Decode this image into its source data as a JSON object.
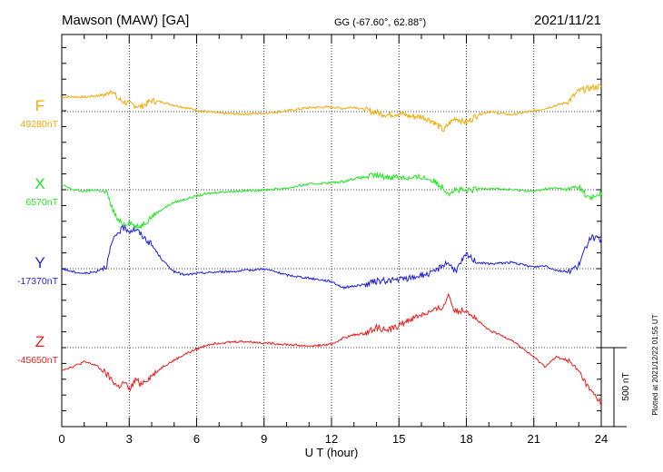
{
  "chart_data": {
    "type": "line",
    "title_station": "Mawson (MAW)  [GA]",
    "title_coords": "GG (-67.60°,  62.88°)",
    "title_date": "2021/11/21",
    "xlabel": "U T (hour)",
    "xlim": [
      0,
      24
    ],
    "x_ticks": [
      "0",
      "3",
      "6",
      "9",
      "12",
      "15",
      "18",
      "21",
      "24"
    ],
    "grid": "dotted",
    "scale_bar_label": "500 nT",
    "scale_bar_nT": 500,
    "plotted_note": "Plotted at 2021/12/22 01:55 UT",
    "series": [
      {
        "component": "F",
        "baseline": "49280nT",
        "color": "#f5a800",
        "hours": [
          0,
          0.5,
          1,
          1.5,
          2,
          2.2,
          2.5,
          2.8,
          3,
          3.3,
          3.5,
          4,
          4.5,
          5,
          5.5,
          6,
          6.5,
          7,
          8,
          9,
          10,
          11,
          12,
          12.5,
          13,
          13.5,
          14,
          14.5,
          15,
          15.5,
          16,
          16.5,
          17,
          17.2,
          17.5,
          18,
          18.5,
          19,
          20,
          21,
          21.5,
          22,
          22.5,
          23,
          23.5,
          24
        ],
        "values": [
          90,
          95,
          92,
          100,
          110,
          140,
          80,
          60,
          50,
          40,
          30,
          70,
          60,
          40,
          25,
          10,
          0,
          -10,
          -15,
          -10,
          5,
          25,
          30,
          20,
          30,
          10,
          -5,
          -20,
          -10,
          -30,
          -30,
          -60,
          -120,
          -80,
          -40,
          -70,
          -20,
          0,
          -20,
          5,
          20,
          40,
          60,
          130,
          150,
          160
        ]
      },
      {
        "component": "X",
        "baseline": "6570nT",
        "color": "#1ee81e",
        "hours": [
          0,
          0.5,
          1,
          1.5,
          2,
          2.2,
          2.5,
          2.8,
          3,
          3.3,
          3.5,
          4,
          4.5,
          5,
          5.5,
          6,
          6.5,
          7,
          8,
          9,
          10,
          11,
          12,
          12.5,
          13,
          13.5,
          14,
          14.5,
          15,
          15.5,
          16,
          16.5,
          17,
          17.2,
          17.5,
          18,
          18.5,
          19,
          20,
          21,
          21.5,
          22,
          22.5,
          23,
          23.5,
          24
        ],
        "values": [
          30,
          0,
          -10,
          0,
          -20,
          -100,
          -200,
          -220,
          -200,
          -240,
          -230,
          -170,
          -120,
          -80,
          -60,
          -40,
          -25,
          -15,
          -8,
          -2,
          10,
          35,
          45,
          50,
          70,
          80,
          90,
          80,
          85,
          70,
          80,
          60,
          10,
          -20,
          0,
          -10,
          5,
          10,
          0,
          -10,
          5,
          10,
          0,
          20,
          -60,
          -20
        ]
      },
      {
        "component": "Y",
        "baseline": "-17370nT",
        "color": "#1f1fe0",
        "hours": [
          0,
          0.5,
          1,
          1.5,
          2,
          2.2,
          2.5,
          2.8,
          3,
          3.3,
          3.5,
          4,
          4.5,
          5,
          5.5,
          6,
          6.5,
          7,
          8,
          9,
          10,
          11,
          12,
          12.5,
          13,
          13.5,
          14,
          14.5,
          15,
          15.5,
          16,
          16.5,
          17,
          17.2,
          17.5,
          18,
          18.5,
          19,
          20,
          21,
          21.5,
          22,
          22.5,
          23,
          23.5,
          24
        ],
        "values": [
          0,
          -20,
          -30,
          -20,
          20,
          150,
          230,
          260,
          240,
          250,
          220,
          150,
          50,
          -20,
          -40,
          -30,
          -25,
          -20,
          -15,
          0,
          -40,
          -60,
          -80,
          -120,
          -110,
          -100,
          -80,
          -75,
          -70,
          -60,
          -40,
          -30,
          30,
          40,
          -20,
          90,
          40,
          30,
          40,
          10,
          20,
          -10,
          -20,
          20,
          200,
          180
        ]
      },
      {
        "component": "Z",
        "baseline": "-45650nT",
        "color": "#ee1c1c",
        "hours": [
          0,
          0.5,
          1,
          1.5,
          2,
          2.2,
          2.5,
          2.8,
          3,
          3.3,
          3.5,
          4,
          4.5,
          5,
          5.5,
          6,
          6.5,
          7,
          8,
          9,
          10,
          11,
          12,
          12.5,
          13,
          13.5,
          14,
          14.5,
          15,
          15.5,
          16,
          16.5,
          17,
          17.2,
          17.5,
          18,
          18.5,
          19,
          20,
          21,
          21.5,
          22,
          22.5,
          23,
          23.5,
          24
        ],
        "values": [
          -140,
          -120,
          -90,
          -110,
          -170,
          -200,
          -250,
          -220,
          -270,
          -200,
          -230,
          -180,
          -120,
          -80,
          -40,
          -10,
          20,
          30,
          40,
          30,
          20,
          10,
          20,
          60,
          80,
          90,
          130,
          110,
          140,
          180,
          210,
          230,
          260,
          340,
          230,
          240,
          170,
          110,
          50,
          -60,
          -120,
          -60,
          -80,
          -150,
          -270,
          -350
        ]
      }
    ]
  }
}
